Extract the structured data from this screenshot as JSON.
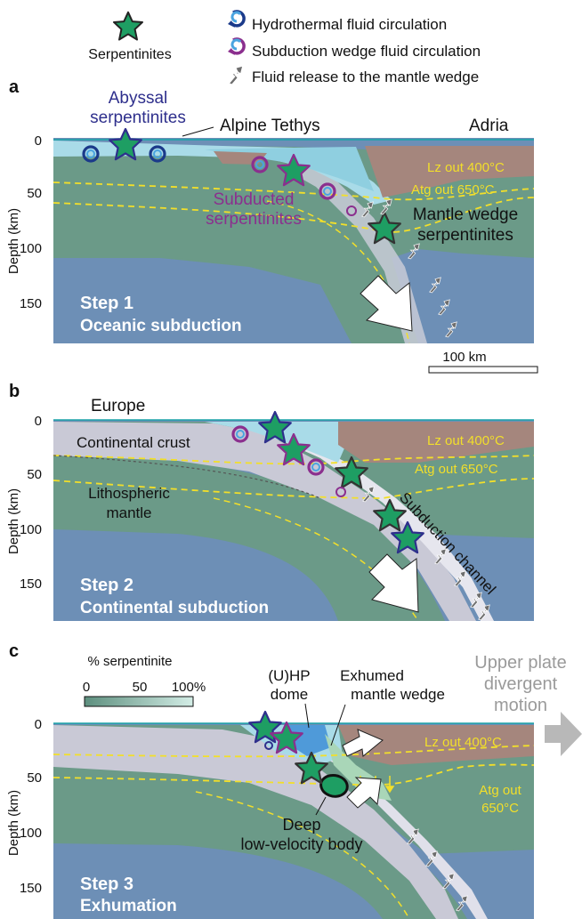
{
  "legend": {
    "serpentinites": "Serpentinites",
    "hydrothermal": "Hydrothermal fluid circulation",
    "subduction_wedge": "Subduction wedge fluid circulation",
    "fluid_release": "Fluid release to the mantle wedge"
  },
  "axis": {
    "ylabel": "Depth (km)",
    "ticks": [
      "0",
      "50",
      "100",
      "150"
    ]
  },
  "panel_a": {
    "letter": "a",
    "abyssal_line1": "Abyssal",
    "abyssal_line2": "serpentinites",
    "alpine": "Alpine Tethys",
    "adria": "Adria",
    "lz": "Lz out 400°C",
    "atg": "Atg out 650°C",
    "subducted_line1": "Subducted",
    "subducted_line2": "serpentinites",
    "wedge_line1": "Mantle wedge",
    "wedge_line2": "serpentinites",
    "step": "Step 1",
    "step_name": "Oceanic subduction",
    "scale": "100 km"
  },
  "panel_b": {
    "letter": "b",
    "europe": "Europe",
    "crust": "Continental crust",
    "litho_line1": "Lithospheric",
    "litho_line2": "mantle",
    "lz": "Lz out 400°C",
    "atg": "Atg out 650°C",
    "channel": "Subduction channel",
    "step": "Step 2",
    "step_name": "Continental subduction"
  },
  "panel_c": {
    "letter": "c",
    "colorbar_title": "% serpentinite",
    "cb0": "0",
    "cb50": "50",
    "cb100": "100%",
    "uhp_line1": "(U)HP",
    "uhp_line2": "dome",
    "exhumed_line1": "Exhumed",
    "exhumed_line2": "mantle wedge",
    "upper_line1": "Upper plate",
    "upper_line2": "divergent",
    "upper_line3": "motion",
    "lz": "Lz out 400°C",
    "atg_line1": "Atg out",
    "atg_line2": "650°C",
    "deep_line1": "Deep",
    "deep_line2": "low-velocity body",
    "step": "Step 3",
    "step_name": "Exhumation"
  },
  "colors": {
    "mantle": "#6b9a88",
    "asthenosphere": "#6d8fb6",
    "ocean": "#a9dbe8",
    "adria_crust": "#a5867d",
    "cont_crust": "#c9c9d6",
    "serpentinite": "#1e9e63",
    "abyssal_text": "#2e2f8c",
    "subducted_text": "#8b2f8e",
    "isotherm": "#f2df2a"
  }
}
